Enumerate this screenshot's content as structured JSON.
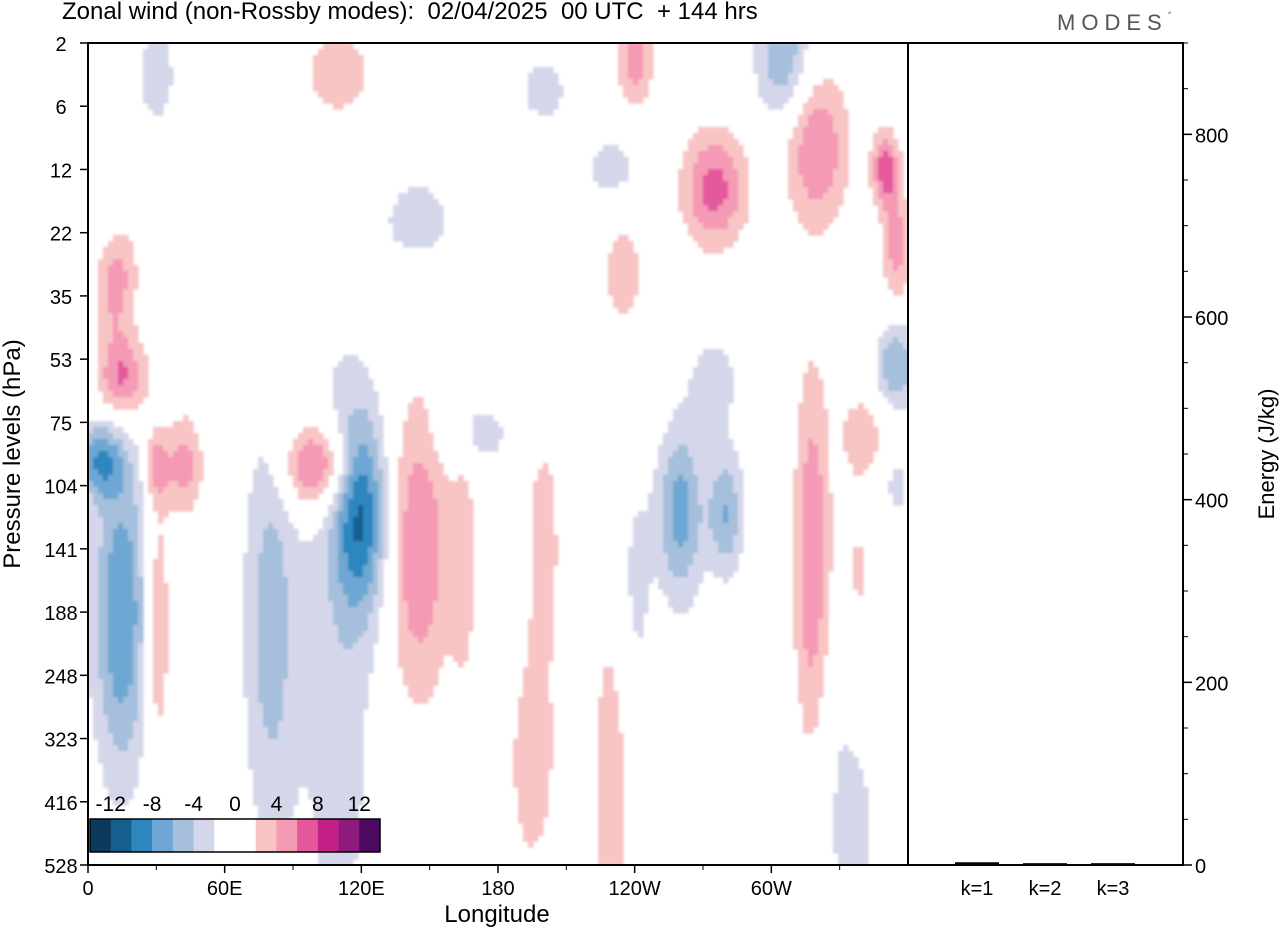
{
  "title": "Zonal wind (non-Rossby modes):  02/04/2025  00 UTC  + 144 hrs",
  "logo": {
    "text": "MODES",
    "mark": "°"
  },
  "chart_data": [
    {
      "type": "heatmap",
      "title": "Zonal wind (non-Rossby modes):  02/04/2025  00 UTC  + 144 hrs",
      "xlabel": "Longitude",
      "ylabel": "Pressure levels (hPa)",
      "x_ticks": [
        {
          "label": "0",
          "lon": 0
        },
        {
          "label": "60E",
          "lon": 60
        },
        {
          "label": "120E",
          "lon": 120
        },
        {
          "label": "180",
          "lon": 180
        },
        {
          "label": "120W",
          "lon": 240
        },
        {
          "label": "60W",
          "lon": 300
        }
      ],
      "xlim": [
        0,
        360
      ],
      "y_levels": [
        2,
        6,
        12,
        22,
        35,
        53,
        75,
        104,
        141,
        188,
        248,
        323,
        416,
        528
      ],
      "colorbar": {
        "labels": [
          "-12",
          "-8",
          "-4",
          "0",
          "4",
          "8",
          "12"
        ],
        "colors": [
          "#0b3a5c",
          "#155f8f",
          "#2f86bf",
          "#6ea7d3",
          "#a5bfdc",
          "#d4d7ea",
          "#ffffff",
          "#ffffff",
          "#f8c4c4",
          "#f59ab5",
          "#e4589c",
          "#c41f86",
          "#8e1a7e",
          "#4d0a63"
        ],
        "levels": [
          -14,
          -12,
          -10,
          -8,
          -6,
          -4,
          -2,
          0,
          2,
          4,
          6,
          8,
          10,
          12,
          14
        ]
      },
      "blobs": [
        {
          "lon": 12,
          "p": 30,
          "w": 9,
          "h": 1.0,
          "v": 6
        },
        {
          "lon": 15,
          "p": 60,
          "w": 11,
          "h": 0.7,
          "v": 7
        },
        {
          "lon": 5,
          "p": 92,
          "w": 10,
          "h": 0.6,
          "v": -7
        },
        {
          "lon": 15,
          "p": 190,
          "w": 13,
          "h": 2.6,
          "v": -8
        },
        {
          "lon": 30,
          "p": 200,
          "w": 6,
          "h": 2.2,
          "v": 5
        },
        {
          "lon": 42,
          "p": 95,
          "w": 8,
          "h": 0.8,
          "v": 5
        },
        {
          "lon": 30,
          "p": 95,
          "w": 5,
          "h": 0.5,
          "v": 5
        },
        {
          "lon": 100,
          "p": 95,
          "w": 15,
          "h": 0.7,
          "v": 8
        },
        {
          "lon": 80,
          "p": 200,
          "w": 12,
          "h": 3.5,
          "v": -5
        },
        {
          "lon": 120,
          "p": 120,
          "w": 12,
          "h": 1.6,
          "v": -9
        },
        {
          "lon": 110,
          "p": 250,
          "w": 18,
          "h": 6.0,
          "v": -3
        },
        {
          "lon": 145,
          "p": 140,
          "w": 14,
          "h": 2.4,
          "v": 6
        },
        {
          "lon": 165,
          "p": 150,
          "w": 6,
          "h": 2.0,
          "v": 3
        },
        {
          "lon": 200,
          "p": 135,
          "w": 8,
          "h": 2.0,
          "v": 3
        },
        {
          "lon": 195,
          "p": 360,
          "w": 12,
          "h": 2.0,
          "v": 3
        },
        {
          "lon": 230,
          "p": 400,
          "w": 10,
          "h": 4.0,
          "v": 3
        },
        {
          "lon": 260,
          "p": 120,
          "w": 10,
          "h": 1.4,
          "v": -7
        },
        {
          "lon": 280,
          "p": 120,
          "w": 8,
          "h": 1.0,
          "v": -6
        },
        {
          "lon": 240,
          "p": 170,
          "w": 8,
          "h": 2.0,
          "v": -3
        },
        {
          "lon": 318,
          "p": 150,
          "w": 8,
          "h": 3.0,
          "v": 6
        },
        {
          "lon": 338,
          "p": 180,
          "w": 8,
          "h": 2.2,
          "v": 3
        },
        {
          "lon": 335,
          "p": 400,
          "w": 14,
          "h": 3.0,
          "v": -3
        },
        {
          "lon": 355,
          "p": 55,
          "w": 9,
          "h": 0.7,
          "v": -6
        },
        {
          "lon": 355,
          "p": 25,
          "w": 6,
          "h": 0.9,
          "v": 5
        },
        {
          "lon": 320,
          "p": 10,
          "w": 14,
          "h": 1.2,
          "v": 6
        },
        {
          "lon": 350,
          "p": 12,
          "w": 6,
          "h": 0.6,
          "v": 7
        },
        {
          "lon": 275,
          "p": 15,
          "w": 14,
          "h": 0.9,
          "v": 7
        },
        {
          "lon": 235,
          "p": 30,
          "w": 10,
          "h": 1.0,
          "v": 3
        },
        {
          "lon": 230,
          "p": 12,
          "w": 14,
          "h": 0.6,
          "v": -3
        },
        {
          "lon": 305,
          "p": 3,
          "w": 12,
          "h": 1.0,
          "v": -6
        },
        {
          "lon": 240,
          "p": 3,
          "w": 8,
          "h": 0.8,
          "v": 5
        },
        {
          "lon": 110,
          "p": 4,
          "w": 20,
          "h": 1.0,
          "v": 3
        },
        {
          "lon": 30,
          "p": 4,
          "w": 10,
          "h": 1.0,
          "v": -3
        },
        {
          "lon": 145,
          "p": 20,
          "w": 18,
          "h": 0.8,
          "v": -3
        },
        {
          "lon": 10,
          "p": 20,
          "w": 8,
          "h": 0.8,
          "v": -3
        },
        {
          "lon": 200,
          "p": 5,
          "w": 12,
          "h": 0.6,
          "v": -3
        },
        {
          "lon": 275,
          "p": 60,
          "w": 12,
          "h": 0.8,
          "v": -3
        },
        {
          "lon": 170,
          "p": 80,
          "w": 18,
          "h": 0.6,
          "v": -3
        },
        {
          "lon": 340,
          "p": 80,
          "w": 10,
          "h": 0.6,
          "v": 3
        },
        {
          "lon": 355,
          "p": 104,
          "w": 5,
          "h": 0.5,
          "v": -3
        }
      ]
    },
    {
      "type": "bar",
      "ylabel": "Energy (J/kg)",
      "categories": [
        "k=1",
        "k=2",
        "k=3"
      ],
      "values": [
        3,
        2,
        2
      ],
      "ylim": [
        0,
        900
      ],
      "y_ticks": [
        0,
        200,
        400,
        600,
        800
      ]
    }
  ]
}
